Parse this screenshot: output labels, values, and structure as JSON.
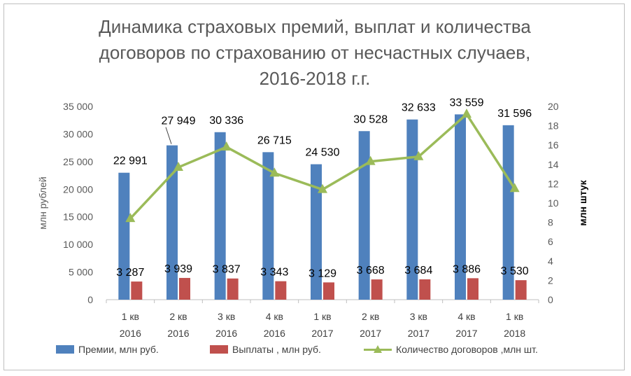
{
  "chart_data": {
    "type": "bar",
    "title": "Динамика страховых премий, выплат и количества договоров по страхованию от несчастных случаев, 2016-2018 г.г.",
    "title_lines": [
      "Динамика страховых премий, выплат и количества",
      "договоров по страхованию от несчастных случаев,",
      "2016-2018 г.г."
    ],
    "categories": [
      [
        "1 кв",
        "2016"
      ],
      [
        "2 кв",
        "2016"
      ],
      [
        "3 кв",
        "2016"
      ],
      [
        "4 кв",
        "2016"
      ],
      [
        "1 кв",
        "2017"
      ],
      [
        "2 кв",
        "2017"
      ],
      [
        "3 кв",
        "2017"
      ],
      [
        "4 кв",
        "2017"
      ],
      [
        "1 кв",
        "2018"
      ]
    ],
    "ylabel": "млн  рублей",
    "y2label": "млн штук",
    "ylim": [
      0,
      35000
    ],
    "y2lim": [
      0,
      20
    ],
    "yticks": [
      "0",
      "5 000",
      "10 000",
      "15 000",
      "20 000",
      "25 000",
      "30 000",
      "35 000"
    ],
    "y2ticks": [
      "0",
      "2",
      "4",
      "6",
      "8",
      "10",
      "12",
      "14",
      "16",
      "18",
      "20"
    ],
    "grid": false,
    "legend_position": "bottom",
    "series": [
      {
        "name": "Премии, млн руб.",
        "kind": "bar",
        "axis": "left",
        "color": "#4f81bd",
        "values": [
          22991,
          27949,
          30336,
          26715,
          24530,
          30528,
          32633,
          33559,
          31596
        ],
        "labels": [
          "22 991",
          "27 949",
          "30 336",
          "26 715",
          "24 530",
          "30 528",
          "32 633",
          "33 559",
          "31 596"
        ]
      },
      {
        "name": "Выплаты , млн руб.",
        "kind": "bar",
        "axis": "left",
        "color": "#c0504d",
        "values": [
          3287,
          3939,
          3837,
          3343,
          3129,
          3668,
          3684,
          3886,
          3530
        ],
        "labels": [
          "3 287",
          "3 939",
          "3 837",
          "3 343",
          "3 129",
          "3 668",
          "3 684",
          "3 886",
          "3 530"
        ]
      },
      {
        "name": "Количество договоров ,млн  шт.",
        "kind": "line",
        "axis": "right",
        "color": "#9bbb59",
        "values": [
          8.4,
          13.7,
          15.8,
          13.1,
          11.4,
          14.3,
          14.8,
          19.2,
          11.5
        ]
      }
    ]
  }
}
